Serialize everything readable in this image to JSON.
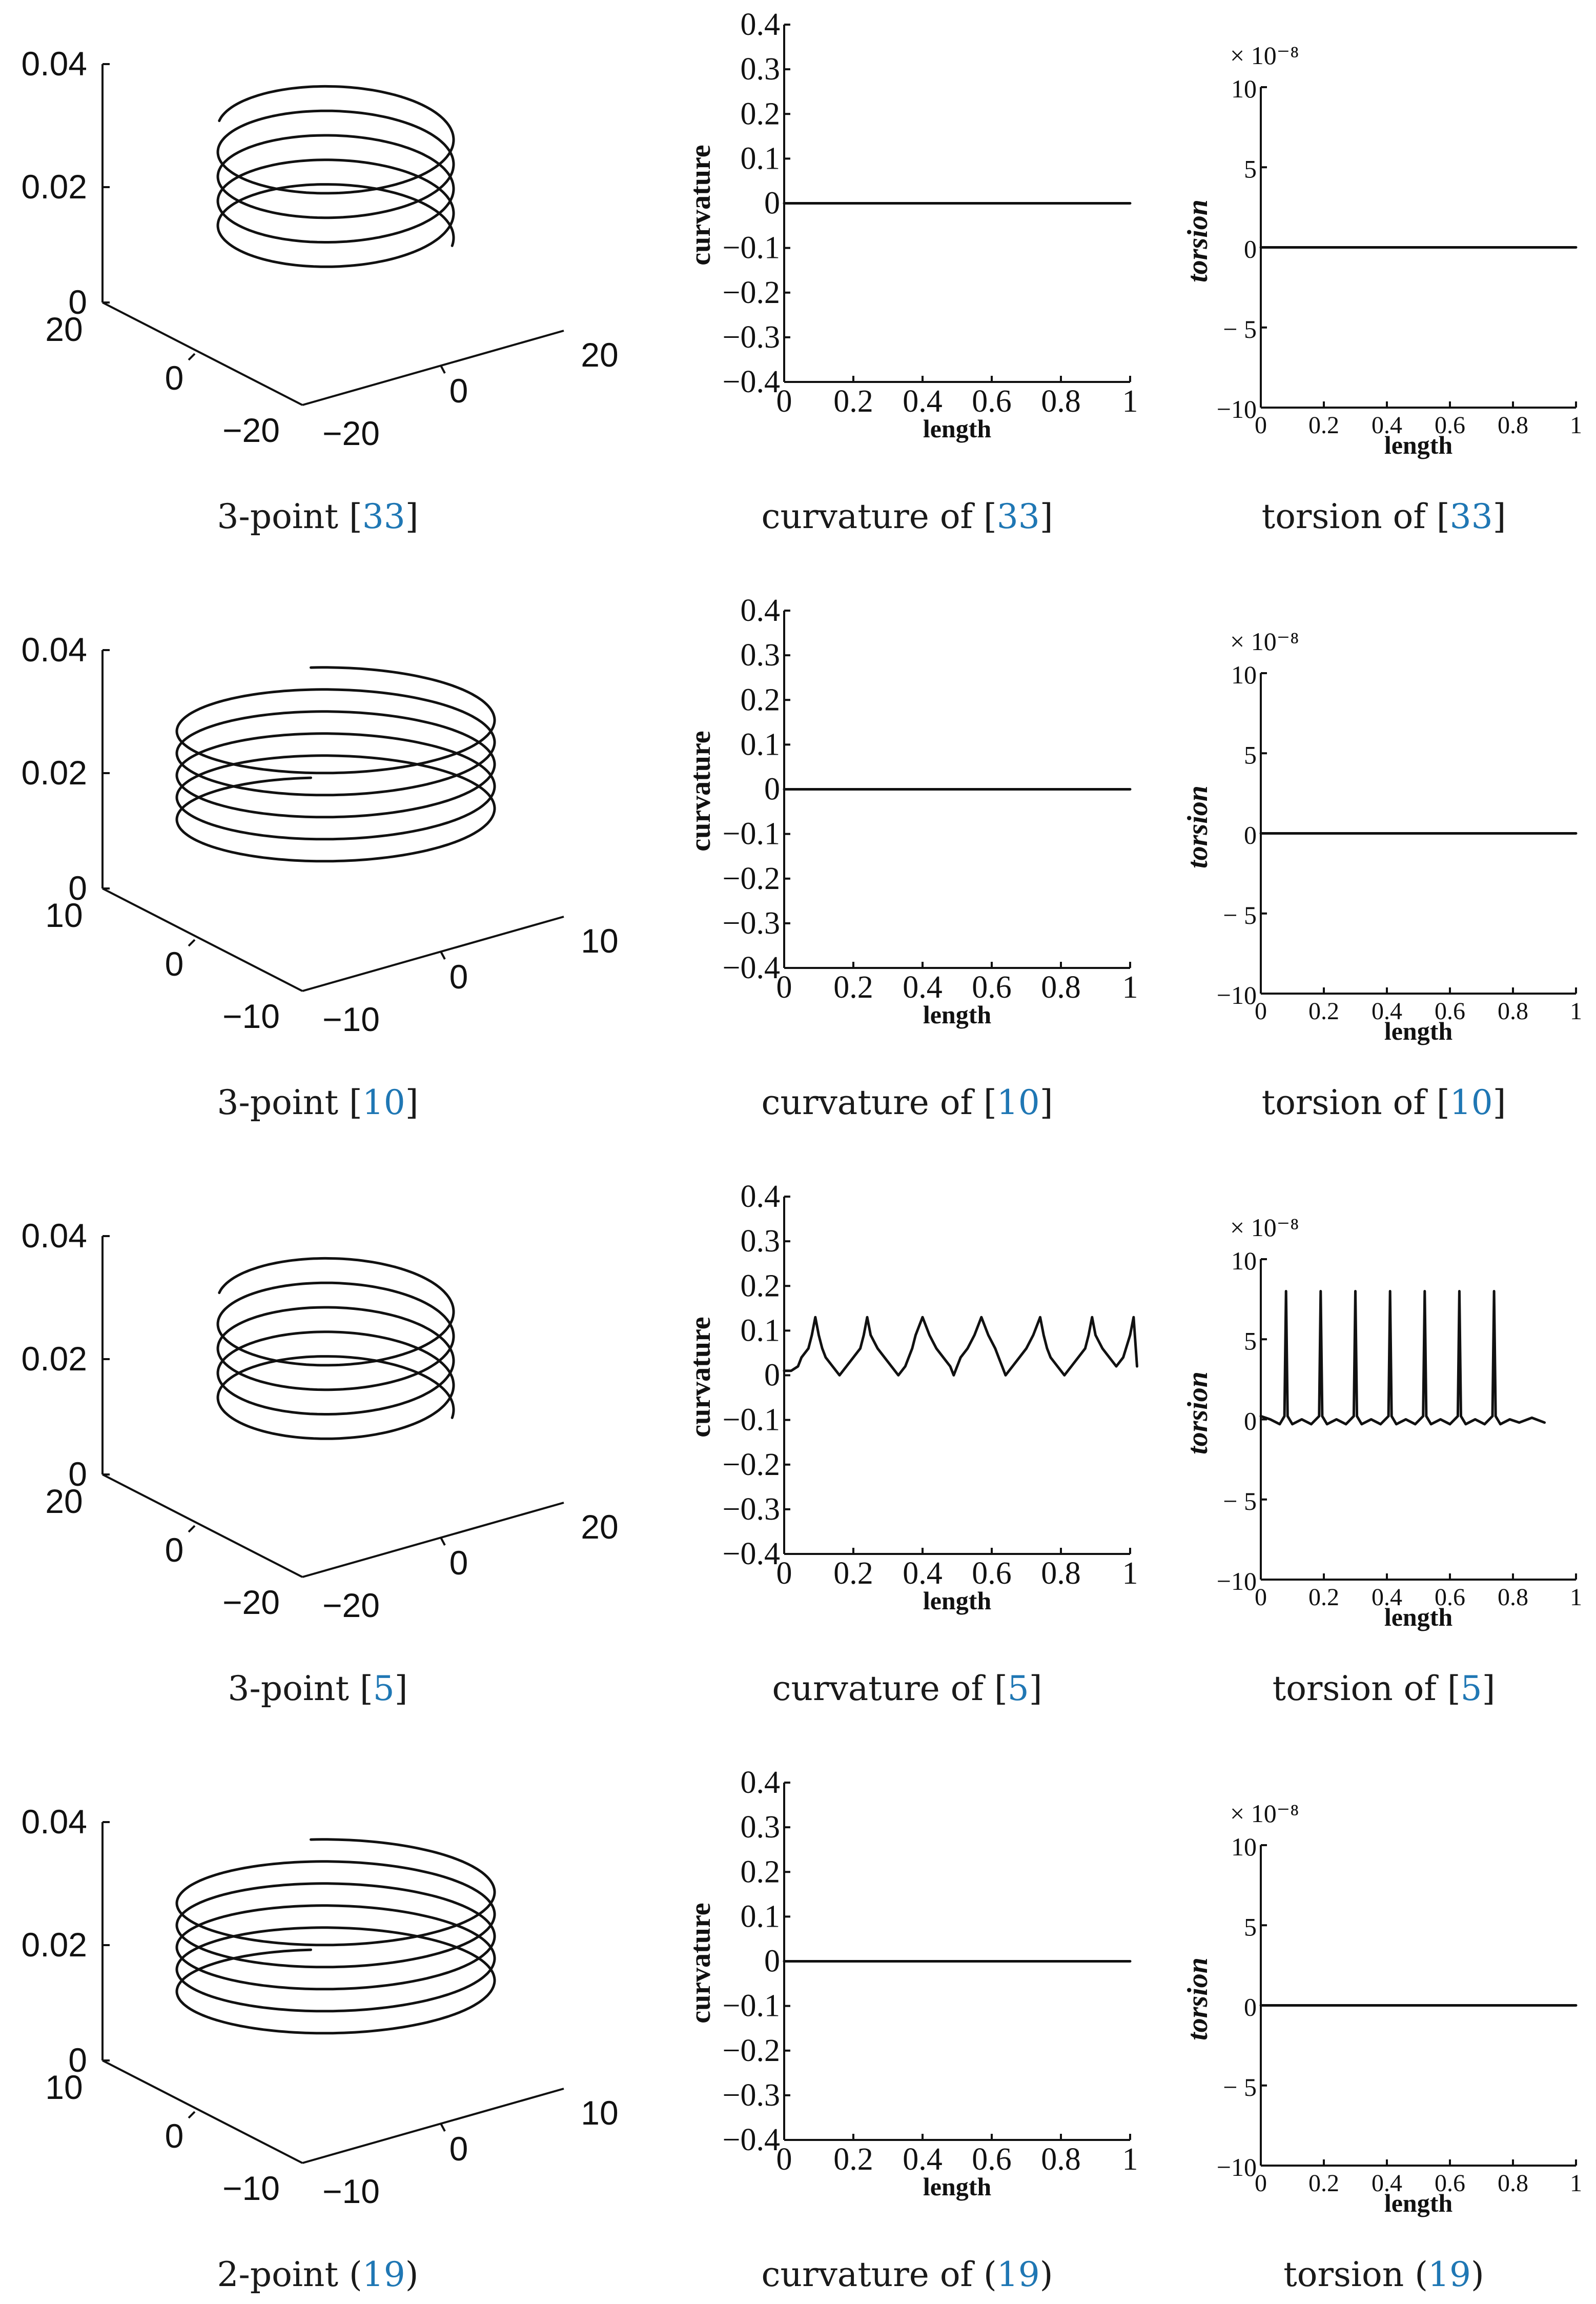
{
  "colors": {
    "curve": "#111111",
    "reference_link": "#1f77b4",
    "text": "#1a1a1a"
  },
  "chart_data": [
    {
      "type": "line",
      "row": 0,
      "col": 0,
      "kind": "3d-helix",
      "title": "",
      "xlabel": "",
      "ylabel": "",
      "z_ticks": [
        "0",
        "0.02",
        "0.04"
      ],
      "x_ticks": [
        "20",
        "0",
        "−20"
      ],
      "y_ticks": [
        "−20",
        "0",
        "20"
      ],
      "xlim": [
        -20,
        20
      ],
      "ylim": [
        -20,
        20
      ],
      "zlim": [
        0,
        0.04
      ],
      "turns": 4.5,
      "caption": {
        "prefix": "3-point [",
        "ref": "33",
        "suffix": "]"
      }
    },
    {
      "type": "line",
      "row": 0,
      "col": 1,
      "kind": "curvature",
      "title": "",
      "xlabel": "length",
      "ylabel": "curvature",
      "xlim": [
        0,
        1
      ],
      "ylim": [
        -0.4,
        0.4
      ],
      "x_ticks": [
        "0",
        "0.2",
        "0.4",
        "0.6",
        "0.8",
        "1"
      ],
      "y_ticks": [
        "−0.4",
        "−0.3",
        "−0.2",
        "−0.1",
        "0",
        "0.1",
        "0.2",
        "0.3",
        "0.4"
      ],
      "x": [
        0,
        1
      ],
      "values": [
        0,
        0
      ],
      "caption": {
        "prefix": "curvature of [",
        "ref": "33",
        "suffix": "]"
      }
    },
    {
      "type": "line",
      "row": 0,
      "col": 2,
      "kind": "torsion",
      "title": "",
      "xlabel": "length",
      "ylabel": "torsion",
      "multiplier": "× 10⁻⁸",
      "xlim": [
        0,
        1
      ],
      "ylim": [
        -10,
        10
      ],
      "x_ticks": [
        "0",
        "0.2",
        "0.4",
        "0.6",
        "0.8",
        "1"
      ],
      "y_ticks": [
        "−10",
        "− 5",
        "0",
        "5",
        "10"
      ],
      "x": [
        0,
        1
      ],
      "values": [
        0,
        0
      ],
      "caption": {
        "prefix": "torsion of [",
        "ref": "33",
        "suffix": "]"
      }
    },
    {
      "type": "line",
      "row": 1,
      "col": 0,
      "kind": "3d-helix",
      "title": "",
      "xlabel": "",
      "ylabel": "",
      "z_ticks": [
        "0",
        "0.02",
        "0.04"
      ],
      "x_ticks": [
        "10",
        "0",
        "−10"
      ],
      "y_ticks": [
        "−10",
        "0",
        "10"
      ],
      "xlim": [
        -10,
        10
      ],
      "ylim": [
        -10,
        10
      ],
      "zlim": [
        0,
        0.04
      ],
      "turns": 5,
      "caption": {
        "prefix": "3-point [",
        "ref": "10",
        "suffix": "]"
      }
    },
    {
      "type": "line",
      "row": 1,
      "col": 1,
      "kind": "curvature",
      "title": "",
      "xlabel": "length",
      "ylabel": "curvature",
      "xlim": [
        0,
        1
      ],
      "ylim": [
        -0.4,
        0.4
      ],
      "x_ticks": [
        "0",
        "0.2",
        "0.4",
        "0.6",
        "0.8",
        "1"
      ],
      "y_ticks": [
        "−0.4",
        "−0.3",
        "−0.2",
        "−0.1",
        "0",
        "0.1",
        "0.2",
        "0.3",
        "0.4"
      ],
      "x": [
        0,
        1
      ],
      "values": [
        0,
        0
      ],
      "caption": {
        "prefix": "curvature of [",
        "ref": "10",
        "suffix": "]"
      }
    },
    {
      "type": "line",
      "row": 1,
      "col": 2,
      "kind": "torsion",
      "title": "",
      "xlabel": "length",
      "ylabel": "torsion",
      "multiplier": "× 10⁻⁸",
      "xlim": [
        0,
        1
      ],
      "ylim": [
        -10,
        10
      ],
      "x_ticks": [
        "0",
        "0.2",
        "0.4",
        "0.6",
        "0.8",
        "1"
      ],
      "y_ticks": [
        "−10",
        "− 5",
        "0",
        "5",
        "10"
      ],
      "x": [
        0,
        1
      ],
      "values": [
        0,
        0
      ],
      "caption": {
        "prefix": "torsion of [",
        "ref": "10",
        "suffix": "]"
      }
    },
    {
      "type": "line",
      "row": 2,
      "col": 0,
      "kind": "3d-helix",
      "title": "",
      "xlabel": "",
      "ylabel": "",
      "z_ticks": [
        "0",
        "0.02",
        "0.04"
      ],
      "x_ticks": [
        "20",
        "0",
        "−20"
      ],
      "y_ticks": [
        "−20",
        "0",
        "20"
      ],
      "xlim": [
        -20,
        20
      ],
      "ylim": [
        -20,
        20
      ],
      "zlim": [
        0,
        0.04
      ],
      "turns": 4.5,
      "caption": {
        "prefix": "3-point [",
        "ref": "5",
        "suffix": "]"
      }
    },
    {
      "type": "line",
      "row": 2,
      "col": 1,
      "kind": "curvature",
      "title": "",
      "xlabel": "length",
      "ylabel": "curvature",
      "xlim": [
        0,
        1
      ],
      "ylim": [
        -0.4,
        0.4
      ],
      "x_ticks": [
        "0",
        "0.2",
        "0.4",
        "0.6",
        "0.8",
        "1"
      ],
      "y_ticks": [
        "−0.4",
        "−0.3",
        "−0.2",
        "−0.1",
        "0",
        "0.1",
        "0.2",
        "0.3",
        "0.4"
      ],
      "x": [
        0,
        0.02,
        0.04,
        0.05,
        0.07,
        0.08,
        0.09,
        0.1,
        0.11,
        0.12,
        0.14,
        0.16,
        0.18,
        0.2,
        0.22,
        0.23,
        0.24,
        0.25,
        0.27,
        0.29,
        0.31,
        0.33,
        0.35,
        0.36,
        0.37,
        0.38,
        0.4,
        0.42,
        0.44,
        0.46,
        0.48,
        0.49,
        0.5,
        0.51,
        0.53,
        0.55,
        0.57,
        0.59,
        0.61,
        0.62,
        0.63,
        0.64,
        0.66,
        0.68,
        0.7,
        0.72,
        0.74,
        0.75,
        0.76,
        0.77,
        0.79,
        0.81,
        0.83,
        0.85,
        0.87,
        0.88,
        0.89,
        0.9,
        0.92,
        0.94,
        0.96,
        0.98,
        1.0,
        1.01,
        1.02
      ],
      "values": [
        0.01,
        0.01,
        0.02,
        0.04,
        0.06,
        0.09,
        0.13,
        0.09,
        0.06,
        0.04,
        0.02,
        0.0,
        0.02,
        0.04,
        0.06,
        0.09,
        0.13,
        0.09,
        0.06,
        0.04,
        0.02,
        0.0,
        0.02,
        0.04,
        0.06,
        0.09,
        0.13,
        0.09,
        0.06,
        0.04,
        0.02,
        0.0,
        0.02,
        0.04,
        0.06,
        0.09,
        0.13,
        0.09,
        0.06,
        0.04,
        0.02,
        0.0,
        0.02,
        0.04,
        0.06,
        0.09,
        0.13,
        0.09,
        0.06,
        0.04,
        0.02,
        0.0,
        0.02,
        0.04,
        0.06,
        0.09,
        0.13,
        0.09,
        0.06,
        0.04,
        0.02,
        0.04,
        0.09,
        0.13,
        0.02
      ],
      "caption": {
        "prefix": "curvature of [",
        "ref": "5",
        "suffix": "]"
      }
    },
    {
      "type": "line",
      "row": 2,
      "col": 2,
      "kind": "torsion",
      "title": "",
      "xlabel": "length",
      "ylabel": "torsion",
      "multiplier": "× 10⁻⁸",
      "xlim": [
        0,
        1
      ],
      "ylim": [
        -10,
        10
      ],
      "x_ticks": [
        "0",
        "0.2",
        "0.4",
        "0.6",
        "0.8",
        "1"
      ],
      "y_ticks": [
        "−10",
        "− 5",
        "0",
        "5",
        "10"
      ],
      "x": [
        0,
        0.03,
        0.06,
        0.075,
        0.08,
        0.085,
        0.1,
        0.13,
        0.16,
        0.185,
        0.19,
        0.195,
        0.21,
        0.24,
        0.27,
        0.295,
        0.3,
        0.305,
        0.32,
        0.35,
        0.38,
        0.405,
        0.41,
        0.415,
        0.43,
        0.46,
        0.49,
        0.515,
        0.52,
        0.525,
        0.54,
        0.57,
        0.6,
        0.625,
        0.63,
        0.635,
        0.65,
        0.68,
        0.71,
        0.735,
        0.74,
        0.745,
        0.76,
        0.79,
        0.82,
        0.86,
        0.9
      ],
      "values": [
        0.2,
        0,
        -0.3,
        0.2,
        8,
        0.2,
        -0.3,
        0,
        -0.3,
        0.2,
        8,
        0.2,
        -0.3,
        0,
        -0.3,
        0.2,
        8,
        0.2,
        -0.3,
        0,
        -0.3,
        0.2,
        8,
        0.2,
        -0.3,
        0,
        -0.3,
        0.2,
        8,
        0.2,
        -0.3,
        0,
        -0.3,
        0.2,
        8,
        0.2,
        -0.3,
        0,
        -0.3,
        0.2,
        8,
        0.2,
        -0.3,
        0,
        -0.2,
        0.1,
        -0.2
      ],
      "caption": {
        "prefix": "torsion of [",
        "ref": "5",
        "suffix": "]"
      }
    },
    {
      "type": "line",
      "row": 3,
      "col": 0,
      "kind": "3d-helix",
      "title": "",
      "xlabel": "",
      "ylabel": "",
      "z_ticks": [
        "0",
        "0.02",
        "0.04"
      ],
      "x_ticks": [
        "10",
        "0",
        "−10"
      ],
      "y_ticks": [
        "−10",
        "0",
        "10"
      ],
      "xlim": [
        -10,
        10
      ],
      "ylim": [
        -10,
        10
      ],
      "zlim": [
        0,
        0.04
      ],
      "turns": 5,
      "caption": {
        "prefix": "2-point (",
        "ref": "19",
        "suffix": ")"
      }
    },
    {
      "type": "line",
      "row": 3,
      "col": 1,
      "kind": "curvature",
      "title": "",
      "xlabel": "length",
      "ylabel": "curvature",
      "xlim": [
        0,
        1
      ],
      "ylim": [
        -0.4,
        0.4
      ],
      "x_ticks": [
        "0",
        "0.2",
        "0.4",
        "0.6",
        "0.8",
        "1"
      ],
      "y_ticks": [
        "−0.4",
        "−0.3",
        "−0.2",
        "−0.1",
        "0",
        "0.1",
        "0.2",
        "0.3",
        "0.4"
      ],
      "x": [
        0,
        1
      ],
      "values": [
        0,
        0
      ],
      "caption": {
        "prefix": "curvature of (",
        "ref": "19",
        "suffix": ")"
      }
    },
    {
      "type": "line",
      "row": 3,
      "col": 2,
      "kind": "torsion",
      "title": "",
      "xlabel": "length",
      "ylabel": "torsion",
      "multiplier": "× 10⁻⁸",
      "xlim": [
        0,
        1
      ],
      "ylim": [
        -10,
        10
      ],
      "x_ticks": [
        "0",
        "0.2",
        "0.4",
        "0.6",
        "0.8",
        "1"
      ],
      "y_ticks": [
        "−10",
        "− 5",
        "0",
        "5",
        "10"
      ],
      "x": [
        0,
        1
      ],
      "values": [
        0,
        0
      ],
      "caption": {
        "prefix": "torsion (",
        "ref": "19",
        "suffix": ")"
      }
    }
  ]
}
